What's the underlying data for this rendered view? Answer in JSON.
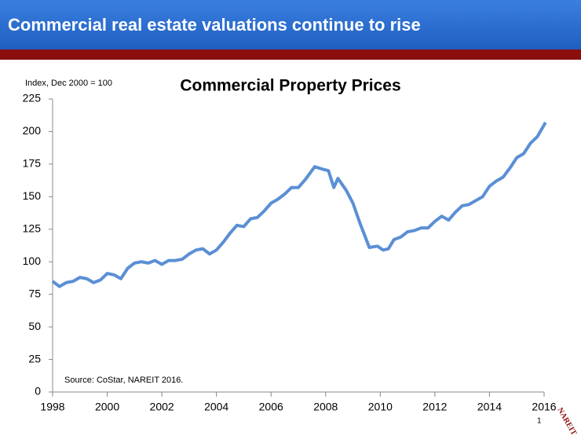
{
  "slide_title": "Commercial real estate valuations continue to rise",
  "page_number": "1",
  "logo": "NAREIT",
  "chart_data": {
    "type": "line",
    "title": "Commercial Property Prices",
    "y_label": "Index, Dec 2000 = 100",
    "annotation": "Source: CoStar, NAREIT 2016.",
    "x": [
      1998.0,
      1998.25,
      1998.5,
      1998.75,
      1999.0,
      1999.25,
      1999.5,
      1999.75,
      2000.0,
      2000.25,
      2000.5,
      2000.75,
      2001.0,
      2001.25,
      2001.5,
      2001.75,
      2002.0,
      2002.25,
      2002.5,
      2002.75,
      2003.0,
      2003.25,
      2003.5,
      2003.75,
      2004.0,
      2004.25,
      2004.5,
      2004.75,
      2005.0,
      2005.25,
      2005.5,
      2005.75,
      2006.0,
      2006.25,
      2006.5,
      2006.75,
      2007.0,
      2007.25,
      2007.6,
      2007.9,
      2008.1,
      2008.3,
      2008.45,
      2008.75,
      2009.0,
      2009.25,
      2009.6,
      2009.9,
      2010.1,
      2010.3,
      2010.5,
      2010.75,
      2011.0,
      2011.25,
      2011.5,
      2011.75,
      2012.0,
      2012.25,
      2012.5,
      2012.75,
      2013.0,
      2013.25,
      2013.5,
      2013.75,
      2014.0,
      2014.25,
      2014.5,
      2014.75,
      2015.0,
      2015.25,
      2015.5,
      2015.75,
      2016.0,
      2016.05
    ],
    "series": [
      {
        "name": "Commercial Property Prices",
        "color": "#5a8fd5",
        "values": [
          85,
          81,
          84,
          85,
          88,
          87,
          84,
          86,
          91,
          90,
          87,
          95,
          99,
          100,
          99,
          101,
          98,
          101,
          101,
          102,
          106,
          109,
          110,
          106,
          109,
          115,
          122,
          128,
          127,
          133,
          134,
          139,
          145,
          148,
          152,
          157,
          157,
          163,
          173,
          171,
          170,
          157,
          164,
          155,
          145,
          130,
          111,
          112,
          109,
          110,
          117,
          119,
          123,
          124,
          126,
          126,
          131,
          135,
          132,
          138,
          143,
          144,
          147,
          150,
          158,
          162,
          165,
          172,
          180,
          183,
          191,
          196,
          205,
          207
        ]
      }
    ],
    "xlim": [
      1998,
      2016
    ],
    "xticks": [
      1998,
      2000,
      2002,
      2004,
      2006,
      2008,
      2010,
      2012,
      2014,
      2016
    ],
    "ylim": [
      0,
      225
    ],
    "yticks": [
      0,
      25,
      50,
      75,
      100,
      125,
      150,
      175,
      200,
      225
    ],
    "grid": false
  }
}
